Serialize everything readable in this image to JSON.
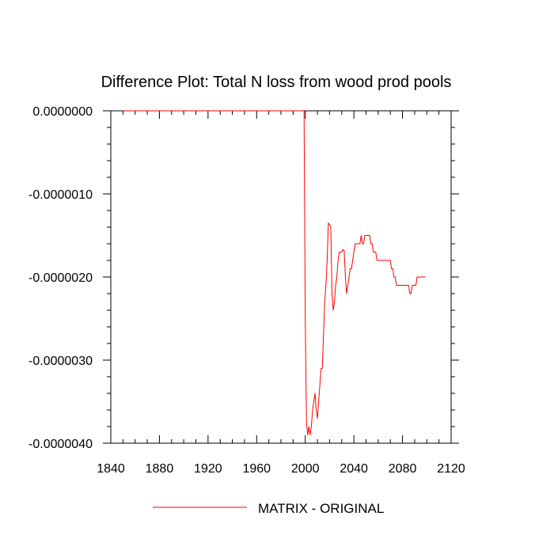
{
  "chart_data": {
    "type": "line",
    "title": "Difference Plot: Total N loss from wood prod pools",
    "ylabel": "",
    "xlabel": "",
    "xlim": [
      1840,
      2120
    ],
    "ylim": [
      -4e-06,
      0.0
    ],
    "xticks": [
      1840,
      1880,
      1920,
      1960,
      2000,
      2040,
      2080,
      2120
    ],
    "yticks": [
      {
        "value": 0.0,
        "label": "0.0000000"
      },
      {
        "value": -1e-06,
        "label": "-0.0000010"
      },
      {
        "value": -2e-06,
        "label": "-0.0000020"
      },
      {
        "value": -3e-06,
        "label": "-0.0000030"
      },
      {
        "value": -4e-06,
        "label": "-0.0000040"
      }
    ],
    "grid": false,
    "legend_position": "bottom-center",
    "series": [
      {
        "name": "MATRIX - ORIGINAL",
        "color": "#ff0000",
        "x": [
          1850,
          1999,
          2000,
          2001,
          2002,
          2003,
          2004,
          2005,
          2006,
          2007,
          2008,
          2009,
          2010,
          2011,
          2012,
          2013,
          2014,
          2015,
          2016,
          2017,
          2018,
          2019,
          2020,
          2021,
          2022,
          2023,
          2024,
          2025,
          2026,
          2027,
          2028,
          2029,
          2030,
          2031,
          2032,
          2033,
          2034,
          2035,
          2036,
          2037,
          2038,
          2039,
          2040,
          2041,
          2042,
          2043,
          2044,
          2045,
          2046,
          2047,
          2048,
          2049,
          2050,
          2051,
          2052,
          2053,
          2054,
          2055,
          2056,
          2057,
          2058,
          2059,
          2060,
          2061,
          2062,
          2063,
          2064,
          2065,
          2066,
          2067,
          2068,
          2069,
          2070,
          2071,
          2072,
          2073,
          2074,
          2075,
          2076,
          2077,
          2078,
          2079,
          2080,
          2081,
          2082,
          2083,
          2084,
          2085,
          2086,
          2087,
          2088,
          2089,
          2090,
          2091,
          2092,
          2093,
          2094,
          2095,
          2096,
          2097,
          2098,
          2099
        ],
        "y": [
          0.0,
          0.0,
          -2.5e-06,
          -3.75e-06,
          -3.9e-06,
          -3.8e-06,
          -3.9e-06,
          -3.8e-06,
          -3.6e-06,
          -3.5e-06,
          -3.4e-06,
          -3.6e-06,
          -3.7e-06,
          -3.5e-06,
          -3.3e-06,
          -3.1e-06,
          -3.1e-06,
          -2.7e-06,
          -2.3e-06,
          -2.1e-06,
          -1.8e-06,
          -1.35e-06,
          -1.37e-06,
          -1.4e-06,
          -2.2e-06,
          -2.4e-06,
          -2.3e-06,
          -2.1e-06,
          -2e-06,
          -1.8e-06,
          -1.7e-06,
          -1.7e-06,
          -1.7e-06,
          -1.67e-06,
          -1.68e-06,
          -2e-06,
          -2.2e-06,
          -2.1e-06,
          -2e-06,
          -1.9e-06,
          -1.9e-06,
          -1.8e-06,
          -1.7e-06,
          -1.6e-06,
          -1.6e-06,
          -1.6e-06,
          -1.6e-06,
          -1.6e-06,
          -1.5e-06,
          -1.6e-06,
          -1.6e-06,
          -1.5e-06,
          -1.5e-06,
          -1.5e-06,
          -1.5e-06,
          -1.5e-06,
          -1.6e-06,
          -1.6e-06,
          -1.7e-06,
          -1.7e-06,
          -1.7e-06,
          -1.8e-06,
          -1.8e-06,
          -1.8e-06,
          -1.8e-06,
          -1.8e-06,
          -1.8e-06,
          -1.8e-06,
          -1.8e-06,
          -1.8e-06,
          -1.8e-06,
          -1.8e-06,
          -1.8e-06,
          -1.9e-06,
          -1.9e-06,
          -2e-06,
          -2e-06,
          -2.1e-06,
          -2.1e-06,
          -2.1e-06,
          -2.1e-06,
          -2.1e-06,
          -2.1e-06,
          -2.1e-06,
          -2.1e-06,
          -2.1e-06,
          -2.1e-06,
          -2.1e-06,
          -2.2e-06,
          -2.2e-06,
          -2.1e-06,
          -2.1e-06,
          -2.1e-06,
          -2.1e-06,
          -2e-06,
          -2e-06,
          -2e-06,
          -2e-06,
          -2e-06,
          -2e-06,
          -2e-06,
          -2e-06
        ]
      }
    ]
  }
}
